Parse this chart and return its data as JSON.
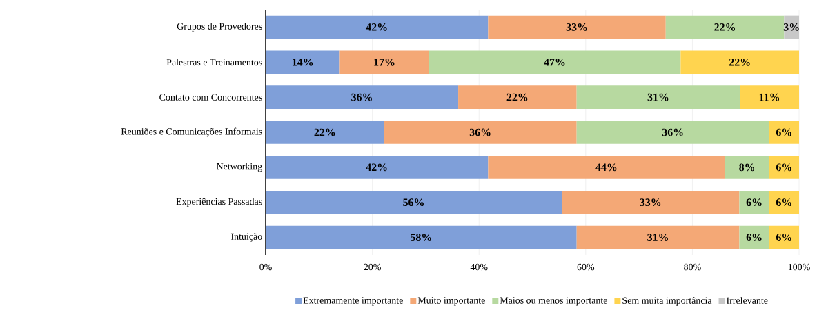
{
  "chart_data": {
    "type": "bar",
    "orientation": "horizontal",
    "stacked": true,
    "categories": [
      "Grupos de Provedores",
      "Palestras e Treinamentos",
      "Contato com Concorrentes",
      "Reuniões e Comunicações Informais",
      "Networking",
      "Experiências Passadas",
      "Intuição"
    ],
    "series": [
      {
        "name": "Extremamente importante",
        "color": "#7f9fd9",
        "values": [
          41.7,
          13.9,
          36.1,
          22.2,
          41.7,
          55.5,
          58.3
        ],
        "value_labels": [
          "42%",
          "14%",
          "36%",
          "22%",
          "42%",
          "56%",
          "58%"
        ]
      },
      {
        "name": "Muito importante",
        "color": "#f4a876",
        "values": [
          33.3,
          16.7,
          22.2,
          36.1,
          44.4,
          33.3,
          30.5
        ],
        "value_labels": [
          "33%",
          "17%",
          "22%",
          "36%",
          "44%",
          "33%",
          "31%"
        ]
      },
      {
        "name": "Maios ou menos importante",
        "color": "#b7d9a0",
        "values": [
          22.2,
          47.2,
          30.6,
          36.1,
          8.3,
          5.6,
          5.6
        ],
        "value_labels": [
          "22%",
          "47%",
          "31%",
          "36%",
          "8%",
          "6%",
          "6%"
        ]
      },
      {
        "name": "Sem muita importância",
        "color": "#ffd44f",
        "values": [
          null,
          22.2,
          11.1,
          5.6,
          5.6,
          5.6,
          5.6
        ],
        "value_labels": [
          null,
          "22%",
          "11%",
          "6%",
          "6%",
          "6%",
          "6%"
        ]
      },
      {
        "name": "Irrelevante",
        "color": "#c8c8c8",
        "values": [
          2.8,
          null,
          null,
          null,
          null,
          null,
          null
        ],
        "value_labels": [
          "3%",
          null,
          null,
          null,
          null,
          null,
          null
        ]
      }
    ],
    "xlim": [
      0,
      100
    ],
    "xticks": [
      {
        "value": 0,
        "label": "0%"
      },
      {
        "value": 20,
        "label": "20%"
      },
      {
        "value": 40,
        "label": "40%"
      },
      {
        "value": 60,
        "label": "60%"
      },
      {
        "value": 80,
        "label": "80%"
      },
      {
        "value": 100,
        "label": "100%"
      }
    ],
    "grid": "x",
    "legend": "bottom"
  }
}
